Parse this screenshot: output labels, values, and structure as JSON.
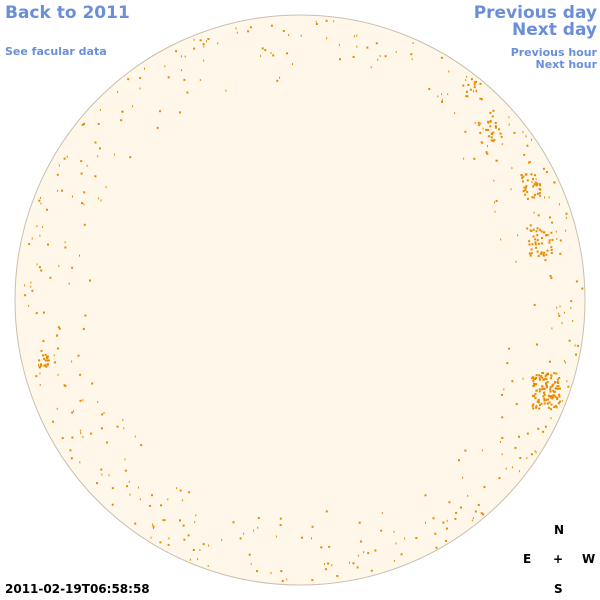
{
  "nav": {
    "back": "Back to 2011",
    "facular": "See facular data",
    "prev_day": "Previous day",
    "next_day": "Next day",
    "prev_hour": "Previous hour",
    "next_hour": "Next hour"
  },
  "compass": {
    "north": "N",
    "south": "S",
    "east": "E",
    "west": "W",
    "center": "+"
  },
  "timestamp": "2011-02-19T06:58:58",
  "colors": {
    "disk": "#fff8ea",
    "disk_edge": "#c9bfae",
    "active_region": "#e88a00",
    "link": "#6a8fd8"
  }
}
